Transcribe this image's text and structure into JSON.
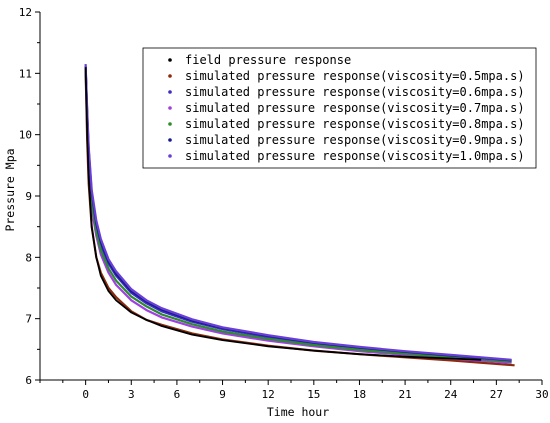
{
  "chart_data": {
    "type": "line",
    "xlabel": "Time   hour",
    "ylabel": "Pressure  Mpa",
    "xlim": [
      -3,
      30
    ],
    "ylim": [
      6,
      12
    ],
    "xticks": [
      0,
      3,
      6,
      9,
      12,
      15,
      18,
      21,
      24,
      27,
      30
    ],
    "yticks": [
      6,
      7,
      8,
      9,
      10,
      11,
      12
    ],
    "grid": false,
    "legend_position": "top-right",
    "field_curve": {
      "name": "field pressure response",
      "color": "#000000",
      "x": [
        0.0,
        0.1,
        0.2,
        0.4,
        0.7,
        1.0,
        1.5,
        2.0,
        3.0,
        4.0,
        5.0,
        7.0,
        9.0,
        12.0,
        15.0,
        18.0,
        21.0,
        24.0,
        26.0
      ],
      "y": [
        11.1,
        10.0,
        9.3,
        8.5,
        8.0,
        7.7,
        7.45,
        7.3,
        7.1,
        6.98,
        6.88,
        6.74,
        6.65,
        6.55,
        6.48,
        6.42,
        6.38,
        6.35,
        6.33
      ]
    },
    "series": [
      {
        "name": "simulated pressure response(viscosity=0.5mpa.s)",
        "color": "#8b2a0e",
        "x": [
          0.0,
          0.1,
          0.2,
          0.4,
          0.7,
          1.0,
          1.5,
          2.0,
          3.0,
          4.0,
          5.0,
          7.0,
          9.0,
          12.0,
          15.0,
          18.0,
          21.0,
          24.0,
          28.2
        ],
        "y": [
          11.05,
          9.9,
          9.2,
          8.5,
          8.0,
          7.75,
          7.5,
          7.35,
          7.12,
          6.98,
          6.9,
          6.76,
          6.66,
          6.56,
          6.48,
          6.42,
          6.37,
          6.32,
          6.24
        ]
      },
      {
        "name": "simulated pressure response(viscosity=0.6mpa.s)",
        "color": "#3b2cc8",
        "x": [
          0.0,
          0.1,
          0.2,
          0.4,
          0.7,
          1.0,
          1.5,
          2.0,
          3.0,
          4.0,
          5.0,
          7.0,
          9.0,
          12.0,
          15.0,
          18.0,
          21.0,
          24.0,
          28.0
        ],
        "y": [
          11.1,
          10.3,
          9.7,
          9.0,
          8.5,
          8.2,
          7.9,
          7.7,
          7.42,
          7.25,
          7.12,
          6.95,
          6.83,
          6.7,
          6.6,
          6.52,
          6.45,
          6.39,
          6.31
        ]
      },
      {
        "name": "simulated pressure response(viscosity=0.7mpa.s)",
        "color": "#a040e0",
        "x": [
          0.0,
          0.1,
          0.2,
          0.4,
          0.7,
          1.0,
          1.5,
          2.0,
          3.0,
          4.0,
          5.0,
          7.0,
          9.0,
          12.0,
          15.0,
          18.0,
          21.0,
          24.0,
          28.0
        ],
        "y": [
          11.1,
          10.1,
          9.5,
          8.8,
          8.35,
          8.05,
          7.75,
          7.55,
          7.3,
          7.14,
          7.02,
          6.87,
          6.76,
          6.64,
          6.55,
          6.47,
          6.41,
          6.35,
          6.28
        ]
      },
      {
        "name": "simulated pressure response(viscosity=0.8mpa.s)",
        "color": "#2e8b2e",
        "x": [
          0.0,
          0.1,
          0.2,
          0.4,
          0.7,
          1.0,
          1.5,
          2.0,
          3.0,
          4.0,
          5.0,
          7.0,
          9.0,
          12.0,
          15.0,
          18.0,
          21.0,
          24.0,
          28.0
        ],
        "y": [
          11.1,
          10.2,
          9.6,
          8.9,
          8.42,
          8.12,
          7.82,
          7.62,
          7.36,
          7.2,
          7.07,
          6.91,
          6.79,
          6.67,
          6.57,
          6.49,
          6.43,
          6.37,
          6.3
        ]
      },
      {
        "name": "simulated pressure response(viscosity=0.9mpa.s)",
        "color": "#1a1a8c",
        "x": [
          0.0,
          0.1,
          0.2,
          0.4,
          0.7,
          1.0,
          1.5,
          2.0,
          3.0,
          4.0,
          5.0,
          7.0,
          9.0,
          12.0,
          15.0,
          18.0,
          21.0,
          24.0,
          28.0
        ],
        "y": [
          11.12,
          10.35,
          9.75,
          9.05,
          8.55,
          8.25,
          7.93,
          7.73,
          7.45,
          7.28,
          7.15,
          6.97,
          6.85,
          6.72,
          6.61,
          6.53,
          6.46,
          6.4,
          6.32
        ]
      },
      {
        "name": "simulated pressure response(viscosity=1.0mpa.s)",
        "color": "#6a3fd8",
        "x": [
          0.0,
          0.1,
          0.2,
          0.4,
          0.7,
          1.0,
          1.5,
          2.0,
          3.0,
          4.0,
          5.0,
          7.0,
          9.0,
          12.0,
          15.0,
          18.0,
          21.0,
          24.0,
          28.0
        ],
        "y": [
          11.15,
          10.4,
          9.8,
          9.1,
          8.6,
          8.3,
          7.97,
          7.77,
          7.48,
          7.3,
          7.17,
          6.99,
          6.86,
          6.73,
          6.62,
          6.54,
          6.47,
          6.41,
          6.33
        ]
      }
    ]
  }
}
